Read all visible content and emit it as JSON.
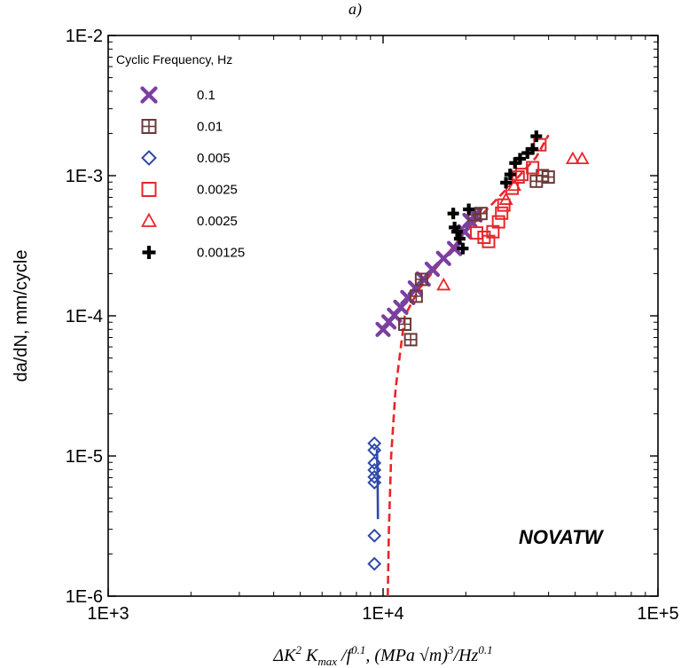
{
  "chart_data": {
    "type": "scatter",
    "panel_label": "a)",
    "annotation": "NOVATW",
    "xlabel_parts": {
      "delta": "ΔK",
      "sup2": "2",
      "kmax": " K",
      "kmax_sub": "max",
      "over_f": " /f",
      "f_sup": "0.1",
      "units_open": ", (MPa √m)",
      "units_sup3": "3",
      "units_hz": "/Hz",
      "hz_sup": "0.1"
    },
    "ylabel": "da/dN, mm/cycle",
    "x_scale": "log",
    "y_scale": "log",
    "xlim": [
      1000,
      100000
    ],
    "ylim": [
      1e-06,
      0.01
    ],
    "x_ticks": [
      {
        "value": 1000,
        "label": "1E+3"
      },
      {
        "value": 10000,
        "label": "1E+4"
      },
      {
        "value": 100000,
        "label": "1E+5"
      }
    ],
    "y_ticks": [
      {
        "value": 0.01,
        "label": "1E-2"
      },
      {
        "value": 0.001,
        "label": "1E-3"
      },
      {
        "value": 0.0001,
        "label": "1E-4"
      },
      {
        "value": 1e-05,
        "label": "1E-5"
      },
      {
        "value": 1e-06,
        "label": "1E-6"
      }
    ],
    "legend_title": "Cyclic Frequency, Hz",
    "legend_position": "top-left",
    "grid": false,
    "series": [
      {
        "name": "0.1",
        "marker": "x",
        "color": "#7b3fa0",
        "points": [
          [
            10000,
            8e-05
          ],
          [
            10500,
            9.05e-05
          ],
          [
            11000,
            0.000101
          ],
          [
            11600,
            0.000115
          ],
          [
            12300,
            0.000135
          ],
          [
            13100,
            0.000158
          ],
          [
            14000,
            0.000183
          ],
          [
            15100,
            0.000215
          ],
          [
            16600,
            0.000257
          ],
          [
            18200,
            0.000302
          ],
          [
            19800,
            0.000398
          ],
          [
            20700,
            0.000479
          ],
          [
            21600,
            0.000525
          ]
        ],
        "fit": [
          [
            10000,
            8e-05
          ],
          [
            11500,
            0.000112
          ],
          [
            13500,
            0.000162
          ],
          [
            16000,
            0.000234
          ],
          [
            18500,
            0.000331
          ],
          [
            21000,
            0.000479
          ]
        ]
      },
      {
        "name": "0.01",
        "marker": "boxplus",
        "color": "#6b3a3a",
        "points": [
          [
            12000,
            8.71e-05
          ],
          [
            12600,
            6.76e-05
          ],
          [
            13200,
            0.000138
          ],
          [
            13800,
            0.000182
          ],
          [
            21500,
            0.000525
          ],
          [
            22700,
            0.000537
          ],
          [
            36100,
            0.000912
          ],
          [
            38000,
            0.001
          ],
          [
            39900,
            0.000977
          ]
        ]
      },
      {
        "name": "0.005",
        "marker": "diamond",
        "color": "#2f4aa8",
        "points": [
          [
            9300,
            1.23e-05
          ],
          [
            9300,
            1.1e-05
          ],
          [
            9300,
            8.91e-06
          ],
          [
            9300,
            7.94e-06
          ],
          [
            9300,
            7.08e-06
          ],
          [
            9300,
            6.46e-06
          ],
          [
            9300,
            2.7e-06
          ],
          [
            9300,
            1.7e-06
          ]
        ],
        "fit": [
          [
            9500,
            1.12e-05
          ],
          [
            9550,
            7.08e-06
          ],
          [
            9570,
            4.5e-06
          ],
          [
            9580,
            3.55e-06
          ]
        ]
      },
      {
        "name": "0.0025",
        "marker": "square",
        "color": "#e8262a",
        "points": [
          [
            21900,
            0.00039
          ],
          [
            23300,
            0.000363
          ],
          [
            24200,
            0.000339
          ],
          [
            25100,
            0.000398
          ],
          [
            26300,
            0.000468
          ],
          [
            27000,
            0.00054
          ],
          [
            27500,
            0.000617
          ],
          [
            29500,
            0.000813
          ],
          [
            31000,
            0.000977
          ],
          [
            32000,
            0.00102
          ],
          [
            35000,
            0.00114
          ],
          [
            37200,
            0.00166
          ]
        ]
      },
      {
        "name": "0.0025",
        "marker": "triangle",
        "color": "#e8262a",
        "points": [
          [
            16600,
            0.000166
          ],
          [
            28000,
            0.000676
          ],
          [
            30000,
            0.000851
          ],
          [
            49000,
            0.00132
          ],
          [
            53000,
            0.00132
          ]
        ],
        "fit": [
          [
            10400,
            1e-06
          ],
          [
            10500,
            3e-06
          ],
          [
            10700,
            1e-05
          ],
          [
            11100,
            3e-05
          ],
          [
            12000,
            0.0001
          ],
          [
            13500,
            0.000155
          ],
          [
            16000,
            0.000234
          ],
          [
            20000,
            0.000398
          ],
          [
            25000,
            0.000631
          ],
          [
            31000,
            0.000977
          ],
          [
            36000,
            0.00135
          ],
          [
            40000,
            0.00195
          ]
        ]
      },
      {
        "name": "0.00125",
        "marker": "plus",
        "color": "#000000",
        "points": [
          [
            18000,
            0.000537
          ],
          [
            18200,
            0.000427
          ],
          [
            18600,
            0.000398
          ],
          [
            19000,
            0.000355
          ],
          [
            19500,
            0.000302
          ],
          [
            20500,
            0.000575
          ],
          [
            28000,
            0.000891
          ],
          [
            29000,
            0.00102
          ],
          [
            30200,
            0.00123
          ],
          [
            31500,
            0.00132
          ],
          [
            33500,
            0.00145
          ],
          [
            35000,
            0.00155
          ],
          [
            36100,
            0.00191
          ]
        ]
      }
    ]
  }
}
